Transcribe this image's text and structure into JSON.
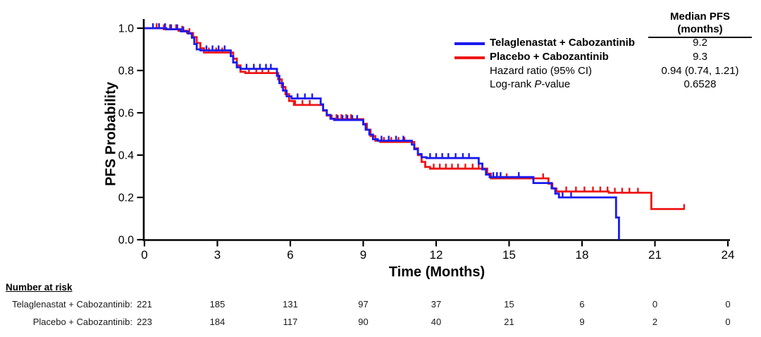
{
  "chart_data": {
    "type": "line",
    "subtype": "kaplan-meier-step",
    "title": "",
    "xlabel": "Time (Months)",
    "ylabel": "PFS Probability",
    "xlim": [
      0,
      24
    ],
    "ylim": [
      0.0,
      1.0
    ],
    "xticks": [
      0,
      3,
      6,
      9,
      12,
      15,
      18,
      21,
      24
    ],
    "yticks": [
      "0.0",
      "0.2",
      "0.4",
      "0.6",
      "0.8",
      "1.0"
    ],
    "grid": false,
    "legend_position": "top-right",
    "annotation": {
      "median_header_line1": "Median PFS",
      "median_header_line2": "(months)",
      "hr_label": "Hazard ratio (95% CI)",
      "hr_value": "0.94 (0.74, 1.21)",
      "logrank_prefix": "Log-rank ",
      "logrank_p": "P",
      "logrank_suffix": "-value",
      "logrank_value": "0.6528"
    },
    "series": [
      {
        "id": "telaglenastat-cabozantinib",
        "name": "Telaglenastat + Cabozantinib",
        "color": "#1a1aee",
        "median": "9.2",
        "steps": [
          [
            0,
            1.0
          ],
          [
            0.9,
            0.995
          ],
          [
            1.5,
            0.985
          ],
          [
            1.8,
            0.975
          ],
          [
            1.95,
            0.955
          ],
          [
            2.05,
            0.925
          ],
          [
            2.15,
            0.9
          ],
          [
            2.3,
            0.895
          ],
          [
            3.45,
            0.895
          ],
          [
            3.55,
            0.868
          ],
          [
            3.65,
            0.838
          ],
          [
            3.8,
            0.815
          ],
          [
            3.95,
            0.808
          ],
          [
            5.35,
            0.808
          ],
          [
            5.45,
            0.775
          ],
          [
            5.55,
            0.74
          ],
          [
            5.7,
            0.705
          ],
          [
            5.85,
            0.678
          ],
          [
            6.05,
            0.668
          ],
          [
            7.15,
            0.668
          ],
          [
            7.25,
            0.64
          ],
          [
            7.35,
            0.612
          ],
          [
            7.5,
            0.59
          ],
          [
            7.65,
            0.572
          ],
          [
            7.8,
            0.566
          ],
          [
            8.9,
            0.566
          ],
          [
            9.0,
            0.545
          ],
          [
            9.1,
            0.52
          ],
          [
            9.25,
            0.497
          ],
          [
            9.4,
            0.475
          ],
          [
            9.6,
            0.468
          ],
          [
            10.9,
            0.468
          ],
          [
            11.0,
            0.45
          ],
          [
            11.1,
            0.428
          ],
          [
            11.25,
            0.405
          ],
          [
            11.4,
            0.39
          ],
          [
            11.6,
            0.386
          ],
          [
            13.6,
            0.386
          ],
          [
            13.75,
            0.36
          ],
          [
            13.9,
            0.333
          ],
          [
            14.05,
            0.308
          ],
          [
            14.2,
            0.296
          ],
          [
            15.9,
            0.296
          ],
          [
            16.0,
            0.268
          ],
          [
            16.6,
            0.268
          ],
          [
            16.75,
            0.243
          ],
          [
            16.9,
            0.218
          ],
          [
            17.05,
            0.2
          ],
          [
            19.35,
            0.2
          ],
          [
            19.4,
            0.105
          ],
          [
            19.52,
            0.105
          ],
          [
            19.52,
            0.0
          ]
        ],
        "censor_times": [
          0.35,
          0.6,
          0.85,
          1.1,
          1.35,
          1.6,
          2.55,
          2.8,
          3.05,
          3.3,
          4.2,
          4.5,
          4.75,
          5.0,
          5.2,
          6.3,
          6.6,
          6.9,
          7.95,
          8.15,
          8.35,
          8.55,
          8.75,
          9.75,
          10.05,
          10.35,
          10.65,
          11.75,
          12.0,
          12.25,
          12.5,
          12.8,
          13.1,
          13.35,
          14.35,
          14.5,
          14.65,
          15.4,
          17.2,
          17.55
        ]
      },
      {
        "id": "placebo-cabozantinib",
        "name": "Placebo + Cabozantinib",
        "color": "#ee1515",
        "median": "9.3",
        "steps": [
          [
            0,
            1.0
          ],
          [
            0.8,
            0.995
          ],
          [
            1.4,
            0.988
          ],
          [
            1.75,
            0.977
          ],
          [
            2.0,
            0.958
          ],
          [
            2.15,
            0.93
          ],
          [
            2.3,
            0.905
          ],
          [
            2.45,
            0.885
          ],
          [
            3.5,
            0.885
          ],
          [
            3.65,
            0.856
          ],
          [
            3.8,
            0.824
          ],
          [
            3.95,
            0.794
          ],
          [
            4.15,
            0.788
          ],
          [
            5.4,
            0.788
          ],
          [
            5.5,
            0.758
          ],
          [
            5.65,
            0.722
          ],
          [
            5.8,
            0.688
          ],
          [
            5.95,
            0.656
          ],
          [
            6.15,
            0.637
          ],
          [
            7.2,
            0.637
          ],
          [
            7.35,
            0.61
          ],
          [
            7.5,
            0.587
          ],
          [
            7.7,
            0.572
          ],
          [
            7.85,
            0.57
          ],
          [
            8.85,
            0.57
          ],
          [
            9.0,
            0.548
          ],
          [
            9.15,
            0.52
          ],
          [
            9.3,
            0.49
          ],
          [
            9.5,
            0.468
          ],
          [
            9.7,
            0.462
          ],
          [
            10.95,
            0.462
          ],
          [
            11.1,
            0.432
          ],
          [
            11.25,
            0.4
          ],
          [
            11.4,
            0.368
          ],
          [
            11.55,
            0.344
          ],
          [
            11.75,
            0.336
          ],
          [
            14.0,
            0.336
          ],
          [
            14.1,
            0.312
          ],
          [
            14.25,
            0.29
          ],
          [
            16.5,
            0.29
          ],
          [
            16.62,
            0.265
          ],
          [
            16.78,
            0.242
          ],
          [
            16.95,
            0.228
          ],
          [
            19.0,
            0.228
          ],
          [
            19.1,
            0.222
          ],
          [
            20.75,
            0.222
          ],
          [
            20.85,
            0.145
          ],
          [
            22.2,
            0.145
          ]
        ],
        "censor_times": [
          0.5,
          0.8,
          1.05,
          1.3,
          1.55,
          1.85,
          2.65,
          2.95,
          3.2,
          4.3,
          4.6,
          4.85,
          5.1,
          6.2,
          6.5,
          6.8,
          7.9,
          8.1,
          8.3,
          8.5,
          9.85,
          10.15,
          10.45,
          10.7,
          11.9,
          12.15,
          12.4,
          12.65,
          12.9,
          13.2,
          13.5,
          13.75,
          14.9,
          16.4,
          17.35,
          17.75,
          18.1,
          18.45,
          18.75,
          19.05,
          19.35,
          19.65,
          19.95,
          20.3,
          22.2
        ]
      }
    ],
    "number_at_risk": {
      "header": "Number at risk",
      "times": [
        0,
        3,
        6,
        9,
        12,
        15,
        18,
        21,
        24
      ],
      "rows": [
        {
          "label": "Telaglenastat + Cabozantinib:",
          "values": [
            221,
            185,
            131,
            97,
            37,
            15,
            6,
            0,
            0
          ]
        },
        {
          "label": "Placebo + Cabozantinib:",
          "values": [
            223,
            184,
            117,
            90,
            40,
            21,
            9,
            2,
            0
          ]
        }
      ]
    }
  }
}
